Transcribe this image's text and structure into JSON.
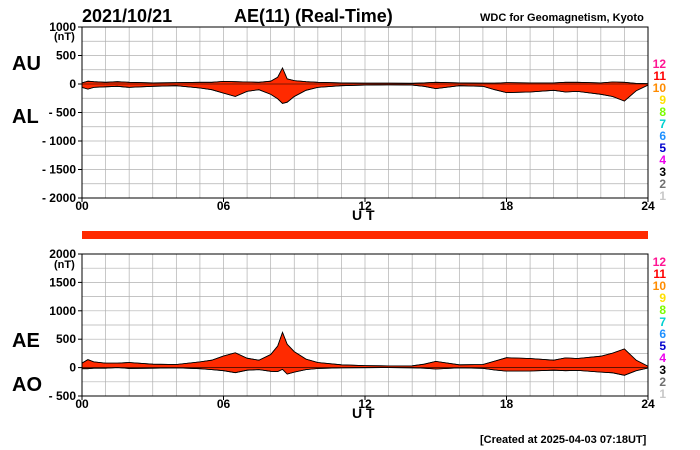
{
  "header": {
    "date": "2021/10/21",
    "title": "AE(11) (Real-Time)",
    "source": "WDC for Geomagnetism, Kyoto"
  },
  "footer": {
    "created": "[Created at 2025-04-03 07:18UT]"
  },
  "colors": {
    "fill": "#ff2a00",
    "outline": "#000000",
    "grid": "#b0b0b0"
  },
  "legend_numbers": [
    {
      "label": "12",
      "color": "#ff1493"
    },
    {
      "label": "11",
      "color": "#ff0000"
    },
    {
      "label": "10",
      "color": "#ff8c00"
    },
    {
      "label": "9",
      "color": "#ffe000"
    },
    {
      "label": "8",
      "color": "#7cfc00"
    },
    {
      "label": "7",
      "color": "#00d0d0"
    },
    {
      "label": "6",
      "color": "#1e90ff"
    },
    {
      "label": "5",
      "color": "#0000cd"
    },
    {
      "label": "4",
      "color": "#ee00ee"
    },
    {
      "label": "3",
      "color": "#000000"
    },
    {
      "label": "2",
      "color": "#707070"
    },
    {
      "label": "1",
      "color": "#c8c8c8"
    }
  ],
  "chart_data": [
    {
      "type": "area",
      "panel": "AU/AL",
      "label_upper": "AU",
      "label_lower": "AL",
      "ylabel": "(nT)",
      "xlabel": "U T",
      "xlim": [
        0,
        24
      ],
      "ylim": [
        -2000,
        1000
      ],
      "xticks": [
        "00",
        "06",
        "12",
        "18",
        "24"
      ],
      "yticks": [
        1000,
        500,
        0,
        -500,
        -1000,
        -1500,
        -2000
      ],
      "grid": true,
      "x": [
        0,
        0.25,
        0.5,
        1,
        1.5,
        2,
        3,
        4,
        5,
        5.5,
        6,
        6.5,
        7,
        7.5,
        8,
        8.3,
        8.5,
        8.7,
        9,
        9.5,
        10,
        11,
        12,
        13,
        14,
        14.5,
        15,
        16,
        17,
        17.5,
        18,
        19,
        20,
        20.5,
        21,
        22,
        22.5,
        23,
        23.5,
        24
      ],
      "upper": [
        20,
        50,
        40,
        30,
        40,
        30,
        20,
        25,
        30,
        30,
        45,
        40,
        35,
        30,
        50,
        120,
        280,
        90,
        60,
        40,
        30,
        20,
        15,
        15,
        12,
        20,
        30,
        20,
        15,
        15,
        25,
        20,
        20,
        30,
        30,
        20,
        35,
        30,
        10,
        5
      ],
      "lower": [
        -60,
        -90,
        -60,
        -50,
        -40,
        -60,
        -40,
        -30,
        -70,
        -100,
        -160,
        -220,
        -130,
        -100,
        -180,
        -260,
        -340,
        -320,
        -220,
        -110,
        -60,
        -30,
        -20,
        -15,
        -20,
        -40,
        -80,
        -30,
        -40,
        -100,
        -150,
        -140,
        -110,
        -140,
        -130,
        -180,
        -220,
        -300,
        -120,
        -20
      ]
    },
    {
      "type": "area",
      "panel": "AE/AO",
      "label_upper": "AE",
      "label_lower": "AO",
      "ylabel": "(nT)",
      "xlabel": "U T",
      "xlim": [
        0,
        24
      ],
      "ylim": [
        -500,
        2000
      ],
      "xticks": [
        "00",
        "06",
        "12",
        "18",
        "24"
      ],
      "yticks": [
        2000,
        1500,
        1000,
        500,
        0,
        -500
      ],
      "grid": true,
      "x": [
        0,
        0.25,
        0.5,
        1,
        1.5,
        2,
        3,
        4,
        5,
        5.5,
        6,
        6.5,
        7,
        7.5,
        8,
        8.3,
        8.5,
        8.7,
        9,
        9.5,
        10,
        11,
        12,
        13,
        14,
        14.5,
        15,
        16,
        17,
        17.5,
        18,
        19,
        20,
        20.5,
        21,
        22,
        22.5,
        23,
        23.5,
        24
      ],
      "upper": [
        80,
        140,
        100,
        80,
        80,
        90,
        60,
        55,
        100,
        130,
        205,
        260,
        165,
        130,
        230,
        380,
        620,
        410,
        280,
        150,
        90,
        50,
        35,
        30,
        32,
        60,
        110,
        50,
        55,
        115,
        175,
        160,
        130,
        170,
        160,
        200,
        255,
        330,
        130,
        25
      ],
      "lower": [
        -20,
        -20,
        -10,
        -10,
        0,
        -15,
        -10,
        -5,
        -20,
        -35,
        -55,
        -90,
        -45,
        -35,
        -65,
        -70,
        -30,
        -115,
        -80,
        -35,
        -15,
        -5,
        -2,
        0,
        -4,
        -10,
        -25,
        -5,
        -12,
        -42,
        -62,
        -60,
        -45,
        -55,
        -50,
        -80,
        -92,
        -135,
        -55,
        -7
      ]
    }
  ]
}
